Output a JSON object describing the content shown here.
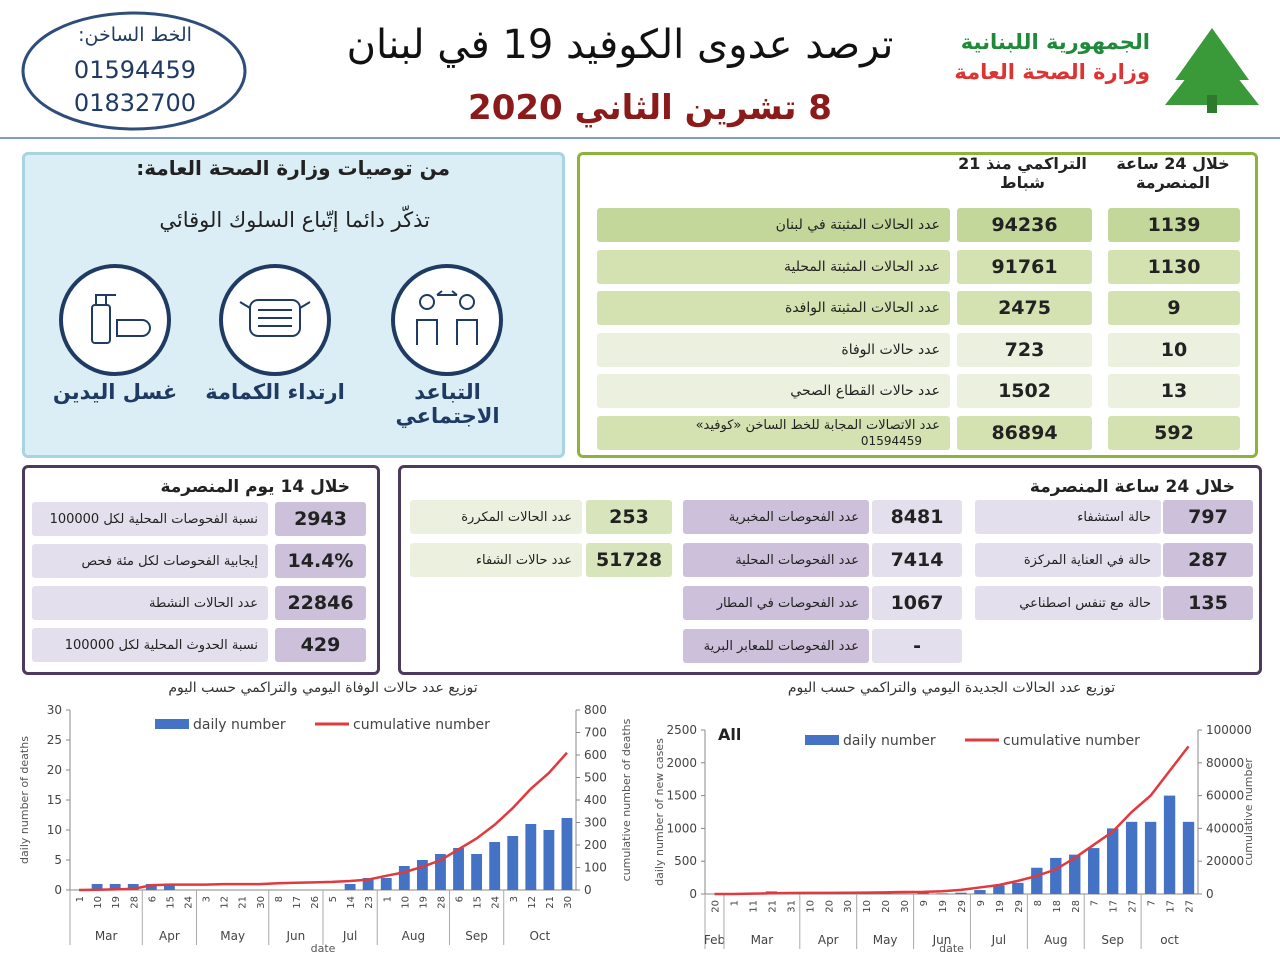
{
  "header": {
    "ministry_line1": "الجمهورية اللبنانية",
    "ministry_line2": "وزارة الصحة العامة",
    "title": "ترصد عدوى الكوفيد 19 في لبنان",
    "date": "8 تشرين الثاني 2020",
    "hotline_label": "الخط الساخن:",
    "hotline_numbers": [
      "01594459",
      "01832700"
    ]
  },
  "recommendations": {
    "title": "من توصيات وزارة الصحة العامة:",
    "subtitle": "تذكّر دائما إتّباع السلوك الوقائي",
    "items": [
      "التباعد الاجتماعي",
      "ارتداء الكمامة",
      "غسل اليدين"
    ]
  },
  "summary": {
    "col_daily": "خلال 24 ساعة المنصرمة",
    "col_cumulative": "التراكمي منذ 21 شباط",
    "rows": [
      {
        "label": "عدد الحالات المثبتة في لبنان",
        "daily": 1139,
        "cumulative": 94236
      },
      {
        "label": "عدد الحالات المثبتة المحلية",
        "daily": 1130,
        "cumulative": 91761
      },
      {
        "label": "عدد الحالات المثبتة الوافدة",
        "daily": 9,
        "cumulative": 2475
      },
      {
        "label": "عدد حالات الوفاة",
        "daily": 10,
        "cumulative": 723
      },
      {
        "label": "عدد حالات القطاع الصحي",
        "daily": 13,
        "cumulative": 1502
      },
      {
        "label": "عدد الاتصالات المجابة للخط الساخن «كوفيد»",
        "sublabel": "01594459",
        "daily": 592,
        "cumulative": 86894
      }
    ]
  },
  "fourteen_days": {
    "title": "خلال 14 يوم المنصرمة",
    "rows": [
      {
        "label": "نسبة الفحوصات المحلية لكل 100000",
        "value": "2943"
      },
      {
        "label": "إيجابية الفحوصات لكل مئة فحص",
        "value": "14.4%"
      },
      {
        "label": "عدد الحالات النشطة",
        "value": "22846"
      },
      {
        "label": "نسبة الحدوث المحلية لكل 100000",
        "value": "429"
      }
    ]
  },
  "last_24h": {
    "title": "خلال 24 ساعة المنصرمة",
    "hospital": [
      {
        "label": "حالة استشفاء",
        "value": "797"
      },
      {
        "label": "حالة في العناية المركزة",
        "value": "287"
      },
      {
        "label": "حالة مع تنفس اصطناعي",
        "value": "135"
      }
    ],
    "tests": [
      {
        "label": "عدد الفحوصات المخبرية",
        "value": "8481"
      },
      {
        "label": "عدد الفحوصات المحلية",
        "value": "7414"
      },
      {
        "label": "عدد الفحوصات في المطار",
        "value": "1067"
      },
      {
        "label": "عدد الفحوصات للمعابر البرية",
        "value": "-"
      }
    ],
    "other": [
      {
        "label": "عدد الحالات المكررة",
        "value": "253"
      },
      {
        "label": "عدد حالات الشفاء",
        "value": "51728"
      }
    ]
  },
  "chart_data": [
    {
      "type": "bar_line",
      "title": "توزيع عدد حالات  الوفاة اليومي والتراكمي حسب اليوم",
      "ylabel": "daily number of deaths",
      "y2label": "cumulative number of deaths",
      "xlabel": "date",
      "categories": [
        "1",
        "10",
        "19",
        "28",
        "6",
        "15",
        "24",
        "3",
        "12",
        "21",
        "30",
        "8",
        "17",
        "26",
        "5",
        "14",
        "23",
        "1",
        "10",
        "19",
        "28",
        "6",
        "15",
        "24",
        "3",
        "12",
        "21",
        "30"
      ],
      "months": [
        "Mar",
        "Apr",
        "May",
        "Jun",
        "Jul",
        "Aug",
        "Sep",
        "Oct"
      ],
      "series": [
        {
          "name": "daily number",
          "color": "#4472c4",
          "axis": "y",
          "values": [
            0,
            1,
            1,
            1,
            1,
            1,
            0,
            0,
            0,
            0,
            0,
            0,
            0,
            0,
            0,
            1,
            2,
            2,
            4,
            5,
            6,
            7,
            6,
            8,
            9,
            11,
            10,
            12
          ]
        },
        {
          "name": "cumulative number",
          "color": "#e0393e",
          "axis": "y2",
          "values": [
            0,
            1,
            3,
            5,
            21,
            24,
            24,
            24,
            26,
            26,
            26,
            30,
            32,
            34,
            36,
            40,
            46,
            63,
            79,
            103,
            132,
            181,
            229,
            290,
            364,
            450,
            520,
            610
          ]
        }
      ],
      "ylim": [
        0,
        30
      ],
      "yticks": [
        0,
        5,
        10,
        15,
        20,
        25,
        30
      ],
      "y2lim": [
        0,
        800
      ],
      "y2ticks": [
        0,
        100,
        200,
        300,
        400,
        500,
        600,
        700,
        800
      ]
    },
    {
      "type": "bar_line",
      "title": "توزيع عدد الحالات الجديدة اليومي والتراكمي حسب اليوم",
      "annotation": "All",
      "ylabel": "daily number of new cases",
      "y2label": "cumulative number",
      "xlabel": "date",
      "categories": [
        "20",
        "1",
        "11",
        "21",
        "31",
        "10",
        "20",
        "30",
        "10",
        "20",
        "30",
        "9",
        "19",
        "29",
        "9",
        "19",
        "29",
        "8",
        "18",
        "28",
        "7",
        "17",
        "27",
        "7",
        "17",
        "27"
      ],
      "months": [
        "Feb",
        "Mar",
        "Apr",
        "May",
        "Jun",
        "Jul",
        "Aug",
        "Sep",
        "oct"
      ],
      "series": [
        {
          "name": "daily number",
          "color": "#4472c4",
          "axis": "y",
          "values": [
            0,
            1,
            20,
            40,
            30,
            20,
            8,
            5,
            10,
            30,
            5,
            15,
            10,
            20,
            60,
            130,
            170,
            400,
            550,
            600,
            700,
            1000,
            1100,
            1100,
            1500,
            1100
          ]
        },
        {
          "name": "cumulative number",
          "color": "#e0393e",
          "axis": "y2",
          "values": [
            1,
            2,
            200,
            450,
            600,
            680,
            720,
            750,
            850,
            1000,
            1200,
            1300,
            1700,
            2500,
            4000,
            5500,
            8000,
            11000,
            15000,
            22000,
            30000,
            38000,
            50000,
            60000,
            75000,
            90000
          ]
        }
      ],
      "ylim": [
        0,
        2500
      ],
      "yticks": [
        0,
        500,
        1000,
        1500,
        2000,
        2500
      ],
      "y2lim": [
        0,
        100000
      ],
      "y2ticks": [
        0,
        20000,
        40000,
        60000,
        80000,
        100000
      ]
    }
  ]
}
